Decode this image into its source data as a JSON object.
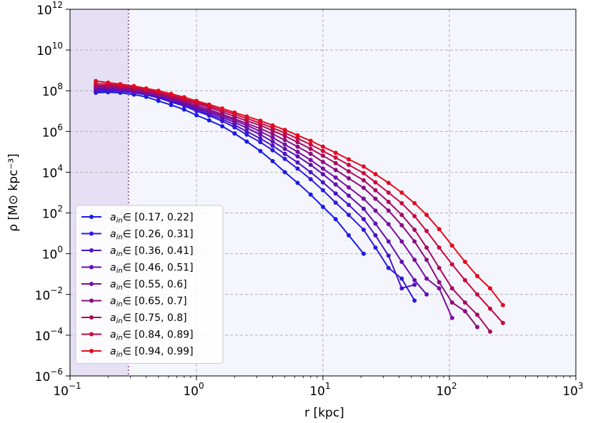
{
  "chart_data": {
    "type": "line",
    "xscale": "log",
    "yscale": "log",
    "xlim": [
      0.1,
      1000
    ],
    "ylim": [
      1e-06,
      1000000000000.0
    ],
    "xlabel": "r [kpc]",
    "ylabel": "ρ [M⊙ kpc⁻³]",
    "grid": true,
    "legend_position": "lower-left",
    "x_ticks": [
      {
        "base": "10",
        "exp": "−1"
      },
      {
        "base": "10",
        "exp": "0"
      },
      {
        "base": "10",
        "exp": "1"
      },
      {
        "base": "10",
        "exp": "2"
      },
      {
        "base": "10",
        "exp": "3"
      }
    ],
    "y_ticks": [
      {
        "base": "10",
        "exp": "−6"
      },
      {
        "base": "10",
        "exp": "−4"
      },
      {
        "base": "10",
        "exp": "−2"
      },
      {
        "base": "10",
        "exp": "0"
      },
      {
        "base": "10",
        "exp": "2"
      },
      {
        "base": "10",
        "exp": "4"
      },
      {
        "base": "10",
        "exp": "6"
      },
      {
        "base": "10",
        "exp": "8"
      },
      {
        "base": "10",
        "exp": "10"
      },
      {
        "base": "10",
        "exp": "12"
      }
    ],
    "shaded_region": {
      "x": [
        0.1,
        0.29
      ],
      "color": "#e6e0f4"
    },
    "vertical_line": {
      "x": 0.29,
      "color": "#9b6bb8"
    },
    "background_color": "#f5f6fd",
    "series": [
      {
        "label_sym": "a",
        "label_sub": "in",
        "label_rest": "∈ [0.17, 0.22]",
        "color": "#1a1ae6",
        "points": [
          [
            0.16,
            80000000.0
          ],
          [
            0.2,
            85000000.0
          ],
          [
            0.25,
            80000000.0
          ],
          [
            0.32,
            65000000.0
          ],
          [
            0.4,
            50000000.0
          ],
          [
            0.5,
            32000000.0
          ],
          [
            0.63,
            20000000.0
          ],
          [
            0.8,
            12000000.0
          ],
          [
            1.0,
            6300000.0
          ],
          [
            1.26,
            3500000.0
          ],
          [
            1.6,
            1800000.0
          ],
          [
            2.0,
            800000.0
          ],
          [
            2.5,
            320000.0
          ],
          [
            3.2,
            110000.0
          ],
          [
            4.0,
            35000.0
          ],
          [
            5.0,
            10000.0
          ],
          [
            6.3,
            3000.0
          ],
          [
            8.0,
            800.0
          ],
          [
            10.0,
            200.0
          ],
          [
            12.6,
            50.0
          ],
          [
            16.0,
            8.0
          ],
          [
            21.0,
            1.0
          ]
        ]
      },
      {
        "label_sym": "a",
        "label_sub": "in",
        "label_rest": "∈ [0.26, 0.31]",
        "color": "#2d1ade",
        "points": [
          [
            0.16,
            90000000.0
          ],
          [
            0.2,
            100000000.0
          ],
          [
            0.25,
            95000000.0
          ],
          [
            0.32,
            80000000.0
          ],
          [
            0.4,
            63000000.0
          ],
          [
            0.5,
            45000000.0
          ],
          [
            0.63,
            28000000.0
          ],
          [
            0.8,
            18000000.0
          ],
          [
            1.0,
            10000000.0
          ],
          [
            1.26,
            6000000.0
          ],
          [
            1.6,
            3200000.0
          ],
          [
            2.0,
            1600000.0
          ],
          [
            2.5,
            700000.0
          ],
          [
            3.2,
            300000.0
          ],
          [
            4.0,
            120000.0
          ],
          [
            5.0,
            45000.0
          ],
          [
            6.3,
            15000.0
          ],
          [
            8.0,
            4500.0
          ],
          [
            10.0,
            1300.0
          ],
          [
            12.6,
            320.0
          ],
          [
            16.0,
            80.0
          ],
          [
            21.0,
            15.0
          ],
          [
            26.0,
            2.0
          ],
          [
            33.0,
            0.2
          ],
          [
            42.0,
            0.06
          ],
          [
            53.0,
            0.005
          ]
        ]
      },
      {
        "label_sym": "a",
        "label_sub": "in",
        "label_rest": "∈ [0.36, 0.41]",
        "color": "#4a12c8",
        "points": [
          [
            0.16,
            100000000.0
          ],
          [
            0.2,
            110000000.0
          ],
          [
            0.25,
            100000000.0
          ],
          [
            0.32,
            85000000.0
          ],
          [
            0.4,
            68000000.0
          ],
          [
            0.5,
            50000000.0
          ],
          [
            0.63,
            32000000.0
          ],
          [
            0.8,
            20000000.0
          ],
          [
            1.0,
            12000000.0
          ],
          [
            1.26,
            7000000.0
          ],
          [
            1.6,
            4000000.0
          ],
          [
            2.0,
            2100000.0
          ],
          [
            2.5,
            1000000.0
          ],
          [
            3.2,
            450000.0
          ],
          [
            4.0,
            200000.0
          ],
          [
            5.0,
            80000.0
          ],
          [
            6.3,
            30000.0
          ],
          [
            8.0,
            10000.0
          ],
          [
            10.0,
            3200.0
          ],
          [
            12.6,
            900.0
          ],
          [
            16.0,
            250.0
          ],
          [
            21.0,
            50.0
          ],
          [
            26.0,
            8.0
          ],
          [
            33.0,
            0.8
          ],
          [
            42.0,
            0.02
          ],
          [
            53.0,
            0.03
          ]
        ]
      },
      {
        "label_sym": "a",
        "label_sub": "in",
        "label_rest": "∈ [0.46, 0.51]",
        "color": "#6010b0",
        "points": [
          [
            0.16,
            120000000.0
          ],
          [
            0.2,
            120000000.0
          ],
          [
            0.25,
            110000000.0
          ],
          [
            0.32,
            90000000.0
          ],
          [
            0.4,
            75000000.0
          ],
          [
            0.5,
            55000000.0
          ],
          [
            0.63,
            36000000.0
          ],
          [
            0.8,
            23000000.0
          ],
          [
            1.0,
            14000000.0
          ],
          [
            1.26,
            8500000.0
          ],
          [
            1.6,
            5000000.0
          ],
          [
            2.0,
            2800000.0
          ],
          [
            2.5,
            1500000.0
          ],
          [
            3.2,
            700000.0
          ],
          [
            4.0,
            320000.0
          ],
          [
            5.0,
            140000.0
          ],
          [
            6.3,
            60000.0
          ],
          [
            8.0,
            23000.0
          ],
          [
            10.0,
            8000.0
          ],
          [
            12.6,
            2500.0
          ],
          [
            16.0,
            700.0
          ],
          [
            21.0,
            160.0
          ],
          [
            26.0,
            30.0
          ],
          [
            33.0,
            4.0
          ],
          [
            42.0,
            0.4
          ],
          [
            53.0,
            0.05
          ],
          [
            66.0,
            0.01
          ]
        ]
      },
      {
        "label_sym": "a",
        "label_sub": "in",
        "label_rest": "∈ [0.55, 0.6]",
        "color": "#7a0ea0",
        "points": [
          [
            0.16,
            140000000.0
          ],
          [
            0.2,
            140000000.0
          ],
          [
            0.25,
            125000000.0
          ],
          [
            0.32,
            100000000.0
          ],
          [
            0.4,
            80000000.0
          ],
          [
            0.5,
            60000000.0
          ],
          [
            0.63,
            40000000.0
          ],
          [
            0.8,
            26000000.0
          ],
          [
            1.0,
            16000000.0
          ],
          [
            1.26,
            10000000.0
          ],
          [
            1.6,
            6000000.0
          ],
          [
            2.0,
            3500000.0
          ],
          [
            2.5,
            2000000.0
          ],
          [
            3.2,
            1000000.0
          ],
          [
            4.0,
            500000.0
          ],
          [
            5.0,
            230000.0
          ],
          [
            6.3,
            100000.0
          ],
          [
            8.0,
            40000.0
          ],
          [
            10.0,
            15000.0
          ],
          [
            12.6,
            5500.0
          ],
          [
            16.0,
            1800.0
          ],
          [
            21.0,
            500.0
          ],
          [
            26.0,
            130.0
          ],
          [
            33.0,
            28.0
          ],
          [
            42.0,
            4.0
          ],
          [
            53.0,
            0.5
          ],
          [
            66.0,
            0.06
          ],
          [
            83.0,
            0.02
          ],
          [
            105.0,
            0.0007
          ]
        ]
      },
      {
        "label_sym": "a",
        "label_sub": "in",
        "label_rest": "∈ [0.65, 0.7]",
        "color": "#8c0c80",
        "points": [
          [
            0.16,
            160000000.0
          ],
          [
            0.2,
            160000000.0
          ],
          [
            0.25,
            140000000.0
          ],
          [
            0.32,
            110000000.0
          ],
          [
            0.4,
            88000000.0
          ],
          [
            0.5,
            66000000.0
          ],
          [
            0.63,
            45000000.0
          ],
          [
            0.8,
            30000000.0
          ],
          [
            1.0,
            19000000.0
          ],
          [
            1.26,
            12000000.0
          ],
          [
            1.6,
            7000000.0
          ],
          [
            2.0,
            4200000.0
          ],
          [
            2.5,
            2500000.0
          ],
          [
            3.2,
            1400000.0
          ],
          [
            4.0,
            750000.0
          ],
          [
            5.0,
            380000.0
          ],
          [
            6.3,
            180000.0
          ],
          [
            8.0,
            80000.0
          ],
          [
            10.0,
            32000.0
          ],
          [
            12.6,
            13000.0
          ],
          [
            16.0,
            5000.0
          ],
          [
            21.0,
            1700.0
          ],
          [
            26.0,
            500.0
          ],
          [
            33.0,
            130.0
          ],
          [
            42.0,
            25.0
          ],
          [
            53.0,
            4.0
          ],
          [
            66.0,
            0.5
          ],
          [
            83.0,
            0.04
          ],
          [
            105.0,
            0.004
          ],
          [
            133.0,
            0.0015
          ],
          [
            166.0,
            0.00025
          ]
        ]
      },
      {
        "label_sym": "a",
        "label_sub": "in",
        "label_rest": "∈ [0.75, 0.8]",
        "color": "#a80a60",
        "points": [
          [
            0.16,
            180000000.0
          ],
          [
            0.2,
            180000000.0
          ],
          [
            0.25,
            155000000.0
          ],
          [
            0.32,
            125000000.0
          ],
          [
            0.4,
            100000000.0
          ],
          [
            0.5,
            75000000.0
          ],
          [
            0.63,
            52000000.0
          ],
          [
            0.8,
            35000000.0
          ],
          [
            1.0,
            23000000.0
          ],
          [
            1.26,
            15000000.0
          ],
          [
            1.6,
            9000000.0
          ],
          [
            2.0,
            5500000.0
          ],
          [
            2.5,
            3300000.0
          ],
          [
            3.2,
            2000000.0
          ],
          [
            4.0,
            1100000.0
          ],
          [
            5.0,
            600000.0
          ],
          [
            6.3,
            300000.0
          ],
          [
            8.0,
            140000.0
          ],
          [
            10.0,
            65000.0
          ],
          [
            12.6,
            28000.0
          ],
          [
            16.0,
            11000.0
          ],
          [
            21.0,
            4000.0
          ],
          [
            26.0,
            1300.0
          ],
          [
            33.0,
            350.0
          ],
          [
            42.0,
            80.0
          ],
          [
            53.0,
            15.0
          ],
          [
            66.0,
            2.0
          ],
          [
            83.0,
            0.2
          ],
          [
            105.0,
            0.02
          ],
          [
            133.0,
            0.004
          ],
          [
            166.0,
            0.001
          ],
          [
            210.0,
            0.00015
          ]
        ]
      },
      {
        "label_sym": "a",
        "label_sub": "in",
        "label_rest": "∈ [0.84, 0.89]",
        "color": "#c80840",
        "points": [
          [
            0.16,
            220000000.0
          ],
          [
            0.2,
            210000000.0
          ],
          [
            0.25,
            180000000.0
          ],
          [
            0.32,
            145000000.0
          ],
          [
            0.4,
            115000000.0
          ],
          [
            0.5,
            85000000.0
          ],
          [
            0.63,
            60000000.0
          ],
          [
            0.8,
            40000000.0
          ],
          [
            1.0,
            27000000.0
          ],
          [
            1.26,
            18000000.0
          ],
          [
            1.6,
            11000000.0
          ],
          [
            2.0,
            7000000.0
          ],
          [
            2.5,
            4300000.0
          ],
          [
            3.2,
            2600000.0
          ],
          [
            4.0,
            1500000.0
          ],
          [
            5.0,
            850000.0
          ],
          [
            6.3,
            450000.0
          ],
          [
            8.0,
            230000.0
          ],
          [
            10.0,
            110000.0
          ],
          [
            12.6,
            52000.0
          ],
          [
            16.0,
            23000.0
          ],
          [
            21.0,
            9000.0
          ],
          [
            26.0,
            3200.0
          ],
          [
            33.0,
            1000.0
          ],
          [
            42.0,
            300.0
          ],
          [
            53.0,
            70.0
          ],
          [
            66.0,
            13.0
          ],
          [
            83.0,
            2.0
          ],
          [
            105.0,
            0.3
          ],
          [
            133.0,
            0.05
          ],
          [
            166.0,
            0.01
          ],
          [
            210.0,
            0.002
          ],
          [
            265.0,
            0.0004
          ]
        ]
      },
      {
        "label_sym": "a",
        "label_sub": "in",
        "label_rest": "∈ [0.94, 0.99]",
        "color": "#e60a1e",
        "points": [
          [
            0.16,
            300000000.0
          ],
          [
            0.2,
            250000000.0
          ],
          [
            0.25,
            210000000.0
          ],
          [
            0.32,
            170000000.0
          ],
          [
            0.4,
            130000000.0
          ],
          [
            0.5,
            100000000.0
          ],
          [
            0.63,
            70000000.0
          ],
          [
            0.8,
            48000000.0
          ],
          [
            1.0,
            32000000.0
          ],
          [
            1.26,
            21000000.0
          ],
          [
            1.6,
            13500000.0
          ],
          [
            2.0,
            8500000.0
          ],
          [
            2.5,
            5500000.0
          ],
          [
            3.2,
            3400000.0
          ],
          [
            4.0,
            2000000.0
          ],
          [
            5.0,
            1200000.0
          ],
          [
            6.3,
            650000.0
          ],
          [
            8.0,
            350000.0
          ],
          [
            10.0,
            180000.0
          ],
          [
            12.6,
            90000.0
          ],
          [
            16.0,
            43000.0
          ],
          [
            21.0,
            19000.0
          ],
          [
            26.0,
            8000.0
          ],
          [
            33.0,
            3000.0
          ],
          [
            42.0,
            1000.0
          ],
          [
            53.0,
            300.0
          ],
          [
            66.0,
            80.0
          ],
          [
            83.0,
            16.0
          ],
          [
            105.0,
            2.5
          ],
          [
            133.0,
            0.4
          ],
          [
            166.0,
            0.08
          ],
          [
            210.0,
            0.02
          ],
          [
            265.0,
            0.003
          ]
        ]
      }
    ]
  }
}
